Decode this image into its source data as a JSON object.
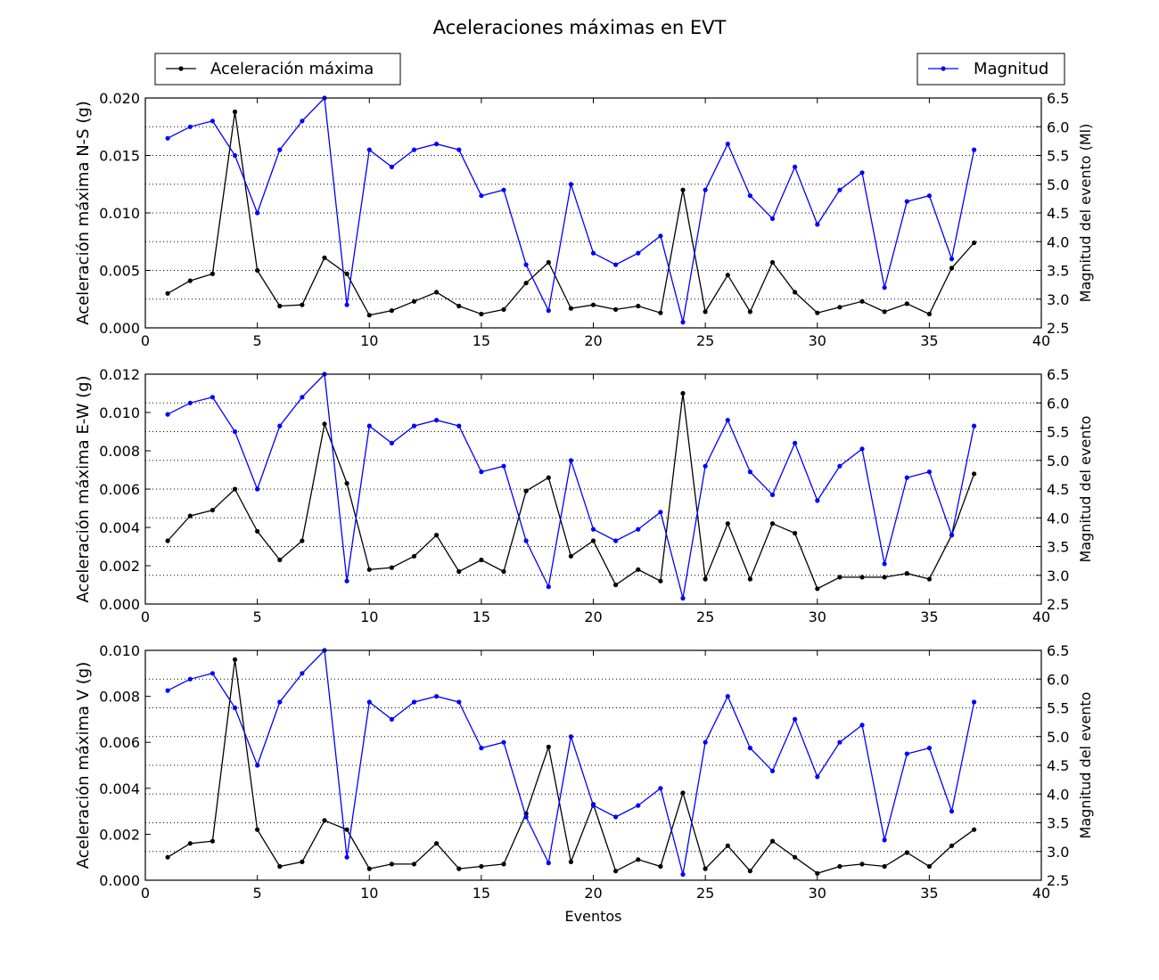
{
  "figure_title": "Aceleraciones máximas en EVT",
  "legend": {
    "accel_label": "Aceleración máxima",
    "mag_label": "Magnitud"
  },
  "colors": {
    "accel": "#000000",
    "magnitude": "#0000ff",
    "grid": "#000000"
  },
  "chart_data": [
    {
      "type": "line",
      "title": "Aceleración máxima N-S",
      "xlabel": "",
      "ylabel": "Aceleración máxima N-S (g)",
      "y2label": "Magnitud del evento (Ml)",
      "xlim": [
        0,
        40
      ],
      "ylim": [
        0,
        0.02
      ],
      "y2lim": [
        2.5,
        6.5
      ],
      "xticks": [
        "0",
        "5",
        "10",
        "15",
        "20",
        "25",
        "30",
        "35",
        "40"
      ],
      "yticks": [
        "0.000",
        "0.005",
        "0.010",
        "0.015",
        "0.020"
      ],
      "y2ticks": [
        "2.5",
        "3.0",
        "3.5",
        "4.0",
        "4.5",
        "5.0",
        "5.5",
        "6.0",
        "6.5"
      ],
      "grid": "horizontal dotted (right axis)",
      "series": [
        {
          "name": "Aceleración máxima",
          "axis": "left",
          "values": [
            0.003,
            0.0041,
            0.0047,
            0.0188,
            0.005,
            0.0019,
            0.002,
            0.0061,
            0.0047,
            0.0011,
            0.0015,
            0.0023,
            0.0031,
            0.0019,
            0.0012,
            0.0016,
            0.0039,
            0.0057,
            0.0017,
            0.002,
            0.0016,
            0.0019,
            0.0013,
            0.012,
            0.0014,
            0.0046,
            0.0014,
            0.0057,
            0.0031,
            0.0013,
            0.0018,
            0.0023,
            0.0014,
            0.0021,
            0.0012,
            0.0052,
            0.0074
          ]
        },
        {
          "name": "Magnitud",
          "axis": "right",
          "values": [
            5.8,
            6.0,
            6.1,
            5.5,
            4.5,
            5.6,
            6.1,
            6.5,
            2.9,
            5.6,
            5.3,
            5.6,
            5.7,
            5.6,
            4.8,
            4.9,
            3.6,
            2.8,
            5.0,
            3.8,
            3.6,
            3.8,
            4.1,
            2.6,
            4.9,
            5.7,
            4.8,
            4.4,
            5.3,
            4.3,
            4.9,
            5.2,
            3.2,
            4.7,
            4.8,
            3.7,
            5.6
          ]
        }
      ]
    },
    {
      "type": "line",
      "title": "Aceleración máxima E-W",
      "xlabel": "",
      "ylabel": "Aceleración máxima E-W (g)",
      "y2label": "Magnitud del evento",
      "xlim": [
        0,
        40
      ],
      "ylim": [
        0,
        0.012
      ],
      "y2lim": [
        2.5,
        6.5
      ],
      "xticks": [
        "0",
        "5",
        "10",
        "15",
        "20",
        "25",
        "30",
        "35",
        "40"
      ],
      "yticks": [
        "0.000",
        "0.002",
        "0.004",
        "0.006",
        "0.008",
        "0.010",
        "0.012"
      ],
      "y2ticks": [
        "2.5",
        "3.0",
        "3.5",
        "4.0",
        "4.5",
        "5.0",
        "5.5",
        "6.0",
        "6.5"
      ],
      "grid": "horizontal dotted (right axis)",
      "series": [
        {
          "name": "Aceleración máxima",
          "axis": "left",
          "values": [
            0.0033,
            0.0046,
            0.0049,
            0.006,
            0.0038,
            0.0023,
            0.0033,
            0.0094,
            0.0063,
            0.0018,
            0.0019,
            0.0025,
            0.0036,
            0.0017,
            0.0023,
            0.0017,
            0.0059,
            0.0066,
            0.0025,
            0.0033,
            0.001,
            0.0018,
            0.0012,
            0.011,
            0.0013,
            0.0042,
            0.0013,
            0.0042,
            0.0037,
            0.0008,
            0.0014,
            0.0014,
            0.0014,
            0.0016,
            0.0013,
            0.0036,
            0.0068
          ]
        },
        {
          "name": "Magnitud",
          "axis": "right",
          "values": [
            5.8,
            6.0,
            6.1,
            5.5,
            4.5,
            5.6,
            6.1,
            6.5,
            2.9,
            5.6,
            5.3,
            5.6,
            5.7,
            5.6,
            4.8,
            4.9,
            3.6,
            2.8,
            5.0,
            3.8,
            3.6,
            3.8,
            4.1,
            2.6,
            4.9,
            5.7,
            4.8,
            4.4,
            5.3,
            4.3,
            4.9,
            5.2,
            3.2,
            4.7,
            4.8,
            3.7,
            5.6
          ]
        }
      ]
    },
    {
      "type": "line",
      "title": "Aceleración máxima V",
      "xlabel": "Eventos",
      "ylabel": "Aceleración máxima V (g)",
      "y2label": "Magnitud del evento",
      "xlim": [
        0,
        40
      ],
      "ylim": [
        0,
        0.01
      ],
      "y2lim": [
        2.5,
        6.5
      ],
      "xticks": [
        "0",
        "5",
        "10",
        "15",
        "20",
        "25",
        "30",
        "35",
        "40"
      ],
      "yticks": [
        "0.000",
        "0.002",
        "0.004",
        "0.006",
        "0.008",
        "0.010"
      ],
      "y2ticks": [
        "2.5",
        "3.0",
        "3.5",
        "4.0",
        "4.5",
        "5.0",
        "5.5",
        "6.0",
        "6.5"
      ],
      "grid": "horizontal dotted (right axis)",
      "series": [
        {
          "name": "Aceleración máxima",
          "axis": "left",
          "values": [
            0.001,
            0.0016,
            0.0017,
            0.0096,
            0.0022,
            0.0006,
            0.0008,
            0.0026,
            0.0022,
            0.0005,
            0.0007,
            0.0007,
            0.0016,
            0.0005,
            0.0006,
            0.0007,
            0.0029,
            0.0058,
            0.0008,
            0.0033,
            0.0004,
            0.0009,
            0.0006,
            0.0038,
            0.0005,
            0.0015,
            0.0004,
            0.0017,
            0.001,
            0.0003,
            0.0006,
            0.0007,
            0.0006,
            0.0012,
            0.0006,
            0.0015,
            0.0022
          ]
        },
        {
          "name": "Magnitud",
          "axis": "right",
          "values": [
            5.8,
            6.0,
            6.1,
            5.5,
            4.5,
            5.6,
            6.1,
            6.5,
            2.9,
            5.6,
            5.3,
            5.6,
            5.7,
            5.6,
            4.8,
            4.9,
            3.6,
            2.8,
            5.0,
            3.8,
            3.6,
            3.8,
            4.1,
            2.6,
            4.9,
            5.7,
            4.8,
            4.4,
            5.3,
            4.3,
            4.9,
            5.2,
            3.2,
            4.7,
            4.8,
            3.7,
            5.6
          ]
        }
      ]
    }
  ]
}
